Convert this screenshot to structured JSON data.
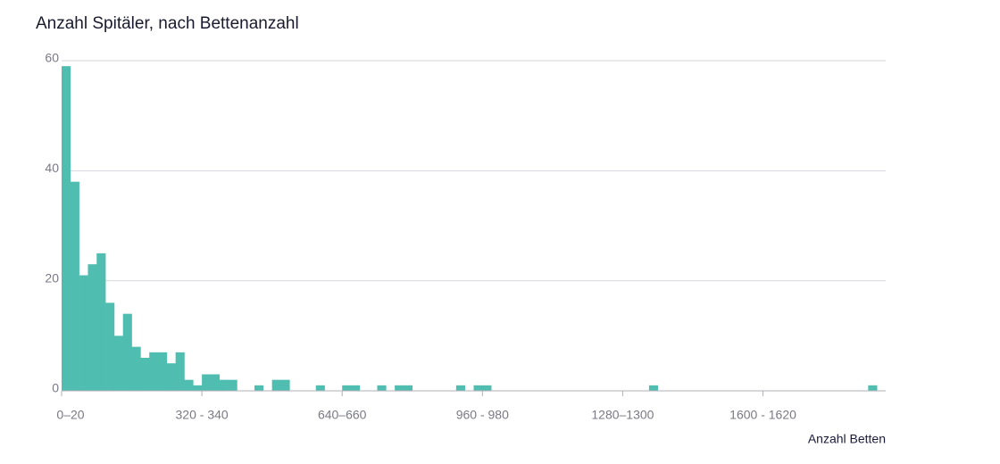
{
  "chart_data": {
    "type": "bar",
    "title": "Anzahl Spitäler, nach Bettenanzahl",
    "x_label": "Anzahl Betten",
    "categories": [
      "0–20",
      null,
      null,
      null,
      null,
      null,
      null,
      null,
      null,
      null,
      null,
      null,
      null,
      null,
      null,
      null,
      "320 - 340",
      null,
      null,
      null,
      null,
      null,
      null,
      null,
      null,
      null,
      null,
      null,
      null,
      null,
      null,
      null,
      "640–660",
      null,
      null,
      null,
      null,
      null,
      null,
      null,
      null,
      null,
      null,
      null,
      null,
      null,
      null,
      null,
      "960 - 980",
      null,
      null,
      null,
      null,
      null,
      null,
      null,
      null,
      null,
      null,
      null,
      null,
      null,
      null,
      null,
      "1280–1300",
      null,
      null,
      null,
      null,
      null,
      null,
      null,
      null,
      null,
      null,
      null,
      null,
      null,
      null,
      null,
      "1600 - 1620",
      null,
      null,
      null,
      null,
      null,
      null,
      null,
      null,
      null,
      null,
      null,
      null,
      null
    ],
    "values": [
      59,
      38,
      21,
      23,
      25,
      16,
      10,
      14,
      8,
      6,
      7,
      7,
      5,
      7,
      2,
      1,
      3,
      3,
      2,
      2,
      0,
      0,
      1,
      0,
      2,
      2,
      0,
      0,
      0,
      1,
      0,
      0,
      1,
      1,
      0,
      0,
      1,
      0,
      1,
      1,
      0,
      0,
      0,
      0,
      0,
      1,
      0,
      1,
      1,
      0,
      0,
      0,
      0,
      0,
      0,
      0,
      0,
      0,
      0,
      0,
      0,
      0,
      0,
      0,
      0,
      0,
      0,
      1,
      0,
      0,
      0,
      0,
      0,
      0,
      0,
      0,
      0,
      0,
      0,
      0,
      0,
      0,
      0,
      0,
      0,
      0,
      0,
      0,
      0,
      0,
      0,
      0,
      1,
      0
    ],
    "color": "#4fbdb0",
    "ylim": [
      0,
      60
    ],
    "yticks": [
      0,
      20,
      40,
      60
    ],
    "grid": true
  }
}
